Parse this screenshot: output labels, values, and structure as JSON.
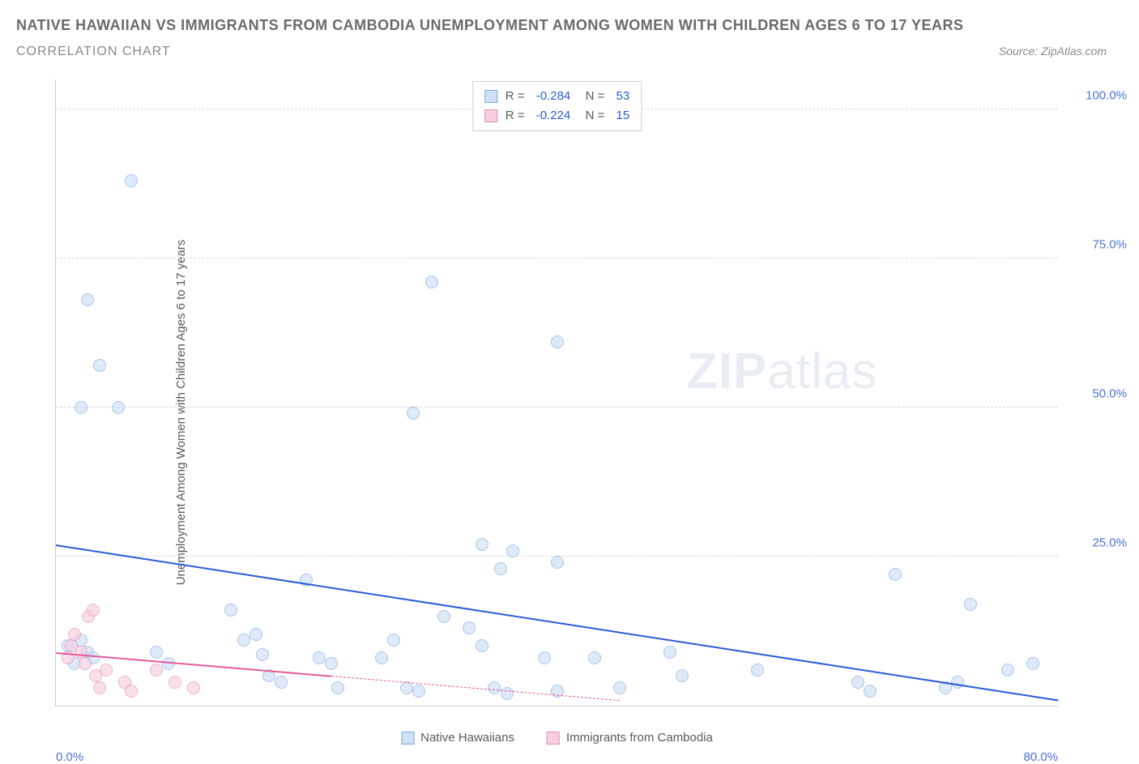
{
  "header": {
    "title": "NATIVE HAWAIIAN VS IMMIGRANTS FROM CAMBODIA UNEMPLOYMENT AMONG WOMEN WITH CHILDREN AGES 6 TO 17 YEARS",
    "subtitle": "CORRELATION CHART",
    "source": "Source: ZipAtlas.com"
  },
  "chart": {
    "type": "scatter",
    "ylabel": "Unemployment Among Women with Children Ages 6 to 17 years",
    "xlim": [
      0,
      80
    ],
    "ylim": [
      0,
      105
    ],
    "xticks": [
      {
        "v": 0,
        "label": "0.0%"
      },
      {
        "v": 80,
        "label": "80.0%"
      }
    ],
    "yticks": [
      {
        "v": 25,
        "label": "25.0%"
      },
      {
        "v": 50,
        "label": "50.0%"
      },
      {
        "v": 75,
        "label": "75.0%"
      },
      {
        "v": 100,
        "label": "100.0%"
      }
    ],
    "background_color": "#ffffff",
    "grid_color": "#d9d9d9",
    "marker_radius": 8,
    "marker_stroke_width": 1.2,
    "watermark": {
      "prefix": "ZIP",
      "suffix": "atlas"
    },
    "series": [
      {
        "name": "Native Hawaiians",
        "fill": "#cfe0f7",
        "stroke": "#7fa8e0",
        "fill_opacity": 0.65,
        "trend": {
          "x1": 0,
          "y1": 27,
          "x2": 80,
          "y2": 1,
          "color": "#2a5bd7",
          "solid_until_x": 80
        },
        "R": "-0.284",
        "N": "53",
        "points": [
          [
            6,
            88
          ],
          [
            2.5,
            68
          ],
          [
            3.5,
            57
          ],
          [
            5,
            50
          ],
          [
            2,
            50
          ],
          [
            30,
            71
          ],
          [
            28.5,
            49
          ],
          [
            40,
            61
          ],
          [
            34,
            27
          ],
          [
            35.5,
            23
          ],
          [
            36.5,
            26
          ],
          [
            40,
            24
          ],
          [
            67,
            22
          ],
          [
            73,
            17
          ],
          [
            1,
            10
          ],
          [
            2,
            11
          ],
          [
            2.5,
            9
          ],
          [
            1.5,
            7
          ],
          [
            3,
            8
          ],
          [
            8,
            9
          ],
          [
            9,
            7
          ],
          [
            14,
            16
          ],
          [
            15,
            11
          ],
          [
            16,
            12
          ],
          [
            16.5,
            8.5
          ],
          [
            17,
            5
          ],
          [
            18,
            4
          ],
          [
            20,
            21
          ],
          [
            21,
            8
          ],
          [
            22,
            7
          ],
          [
            22.5,
            3
          ],
          [
            26,
            8
          ],
          [
            27,
            11
          ],
          [
            28,
            3
          ],
          [
            29,
            2.5
          ],
          [
            31,
            15
          ],
          [
            33,
            13
          ],
          [
            34,
            10
          ],
          [
            35,
            3
          ],
          [
            36,
            2
          ],
          [
            39,
            8
          ],
          [
            40,
            2.5
          ],
          [
            43,
            8
          ],
          [
            45,
            3
          ],
          [
            49,
            9
          ],
          [
            50,
            5
          ],
          [
            56,
            6
          ],
          [
            64,
            4
          ],
          [
            65,
            2.5
          ],
          [
            71,
            3
          ],
          [
            72,
            4
          ],
          [
            76,
            6
          ],
          [
            78,
            7
          ]
        ]
      },
      {
        "name": "Immigrants from Cambodia",
        "fill": "#f6cfe0",
        "stroke": "#e38fb5",
        "fill_opacity": 0.65,
        "trend": {
          "x1": 0,
          "y1": 9,
          "x2": 45,
          "y2": 1,
          "color": "#e45a9a",
          "solid_until_x": 22
        },
        "R": "-0.224",
        "N": "15",
        "points": [
          [
            1,
            8
          ],
          [
            1.2,
            10
          ],
          [
            1.5,
            12
          ],
          [
            2,
            9
          ],
          [
            2.3,
            7
          ],
          [
            2.6,
            15
          ],
          [
            3,
            16
          ],
          [
            3.2,
            5
          ],
          [
            3.5,
            3
          ],
          [
            4,
            6
          ],
          [
            5.5,
            4
          ],
          [
            6,
            2.5
          ],
          [
            8,
            6
          ],
          [
            9.5,
            4
          ],
          [
            11,
            3
          ]
        ]
      }
    ],
    "bottom_legend": [
      {
        "label": "Native Hawaiians",
        "fill": "#cfe0f7",
        "stroke": "#7fa8e0"
      },
      {
        "label": "Immigrants from Cambodia",
        "fill": "#f6cfe0",
        "stroke": "#e38fb5"
      }
    ]
  }
}
